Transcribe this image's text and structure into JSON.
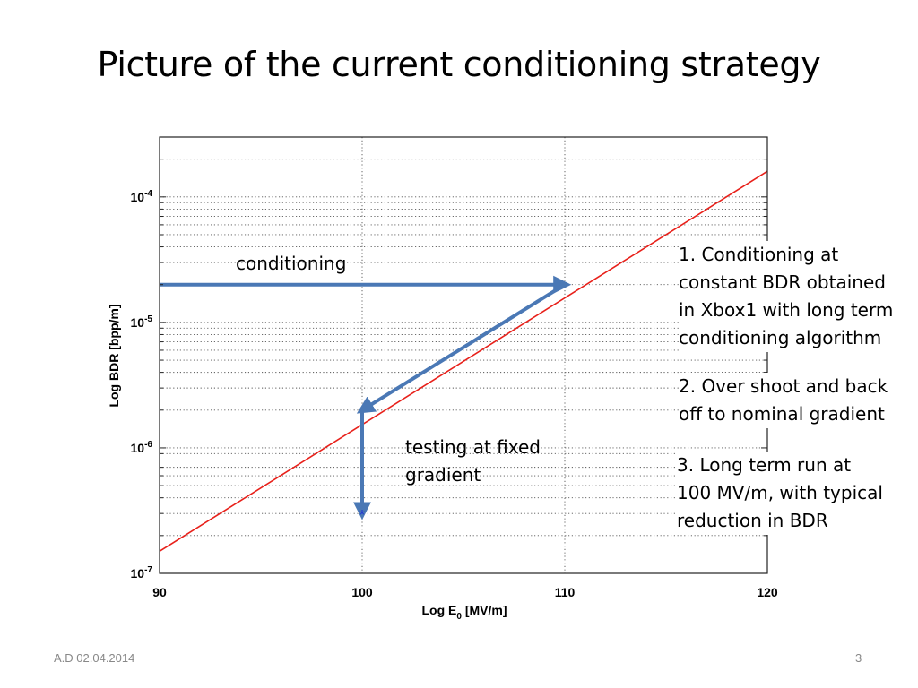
{
  "page_title": "Picture of the current conditioning strategy",
  "footer": {
    "left": "A.D 02.04.2014",
    "right": "3"
  },
  "annotations": {
    "conditioning": "conditioning",
    "testing_lines": [
      "testing at fixed",
      "gradient"
    ]
  },
  "notes": [
    {
      "lines": [
        "1. Conditioning at",
        "constant BDR obtained",
        "in Xbox1 with long term",
        "conditioning algorithm"
      ]
    },
    {
      "lines": [
        "2. Over shoot and back",
        "off to nominal gradient"
      ]
    },
    {
      "lines": [
        "3. Long term run at",
        "100 MV/m, with typical",
        "reduction in BDR"
      ]
    }
  ],
  "chart_data": {
    "type": "line",
    "xlabel_main": "Log E",
    "xlabel_sub": "0",
    "xlabel_unit": " [MV/m]",
    "ylabel": "Log BDR [bpp/m]",
    "xlim": [
      90,
      120
    ],
    "ylim": [
      1e-07,
      0.0003
    ],
    "y_scale": "log",
    "grid": true,
    "x_ticks": [
      90,
      100,
      110,
      120
    ],
    "y_ticks": [
      {
        "value": 1e-07,
        "base": "10",
        "exp": "-7"
      },
      {
        "value": 1e-06,
        "base": "10",
        "exp": "-6"
      },
      {
        "value": 1e-05,
        "base": "10",
        "exp": "-5"
      },
      {
        "value": 0.0001,
        "base": "10",
        "exp": "-4"
      }
    ],
    "series": [
      {
        "color": "#e8201a",
        "x": [
          90,
          120
        ],
        "y": [
          1.5e-07,
          0.00016
        ]
      }
    ],
    "arrows": [
      {
        "from": [
          90,
          2e-05
        ],
        "to": [
          110,
          2e-05
        ],
        "color": "#4a78b5"
      },
      {
        "from": [
          110,
          2e-05
        ],
        "to": [
          100,
          2e-06
        ],
        "color": "#4a78b5"
      },
      {
        "from": [
          100,
          2e-06
        ],
        "to": [
          100,
          3e-07
        ],
        "color": "#4a78b5"
      }
    ],
    "points": [
      {
        "x": 100,
        "y": 3e-07,
        "marker": "*",
        "color": "#1f2fd6"
      }
    ]
  }
}
